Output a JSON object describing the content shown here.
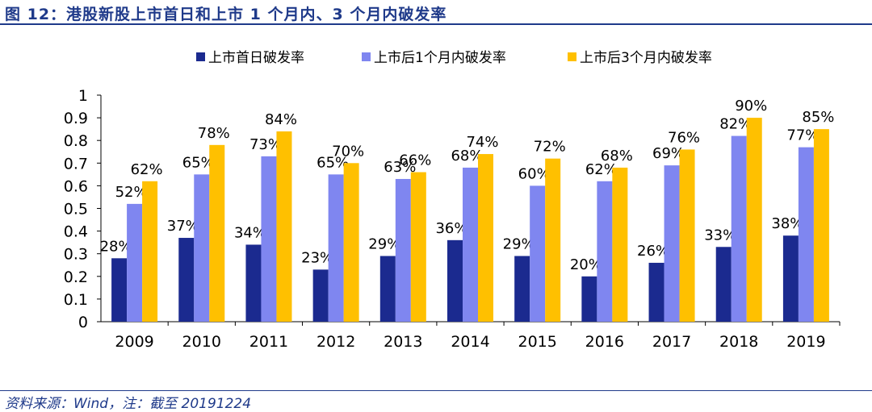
{
  "header": {
    "title": "图 12：港股新股上市首日和上市 1 个月内、3 个月内破发率"
  },
  "footer": {
    "source": "资料来源：Wind，注：截至 20191224"
  },
  "colors": {
    "accent": "#1f3a8a"
  },
  "chart_data": {
    "type": "bar",
    "title": "",
    "xlabel": "",
    "ylabel": "",
    "ylim": [
      0,
      1
    ],
    "yticks": [
      "0",
      "0.1",
      "0.2",
      "0.3",
      "0.4",
      "0.5",
      "0.6",
      "0.7",
      "0.8",
      "0.9",
      "1"
    ],
    "legend_position": "top",
    "grid": false,
    "categories": [
      "2009",
      "2010",
      "2011",
      "2012",
      "2013",
      "2014",
      "2015",
      "2016",
      "2017",
      "2018",
      "2019"
    ],
    "series": [
      {
        "name": "上市首日破发率",
        "color": "#1b2a8f",
        "values": [
          0.28,
          0.37,
          0.34,
          0.23,
          0.29,
          0.36,
          0.29,
          0.2,
          0.26,
          0.33,
          0.38
        ],
        "labels": [
          "28%",
          "37%",
          "34%",
          "23%",
          "29%",
          "36%",
          "29%",
          "20%",
          "26%",
          "33%",
          "38%"
        ]
      },
      {
        "name": "上市后1个月内破发率",
        "color": "#7f86f0",
        "values": [
          0.52,
          0.65,
          0.73,
          0.65,
          0.63,
          0.68,
          0.6,
          0.62,
          0.69,
          0.82,
          0.77
        ],
        "labels": [
          "52%",
          "65%",
          "73%",
          "65%",
          "63%",
          "68%",
          "60%",
          "62%",
          "69%",
          "82%",
          "77%"
        ]
      },
      {
        "name": "上市后3个月内破发率",
        "color": "#ffc000",
        "values": [
          0.62,
          0.78,
          0.84,
          0.7,
          0.66,
          0.74,
          0.72,
          0.68,
          0.76,
          0.9,
          0.85
        ],
        "labels": [
          "62%",
          "78%",
          "84%",
          "70%",
          "66%",
          "74%",
          "72%",
          "68%",
          "76%",
          "90%",
          "85%"
        ]
      }
    ]
  }
}
